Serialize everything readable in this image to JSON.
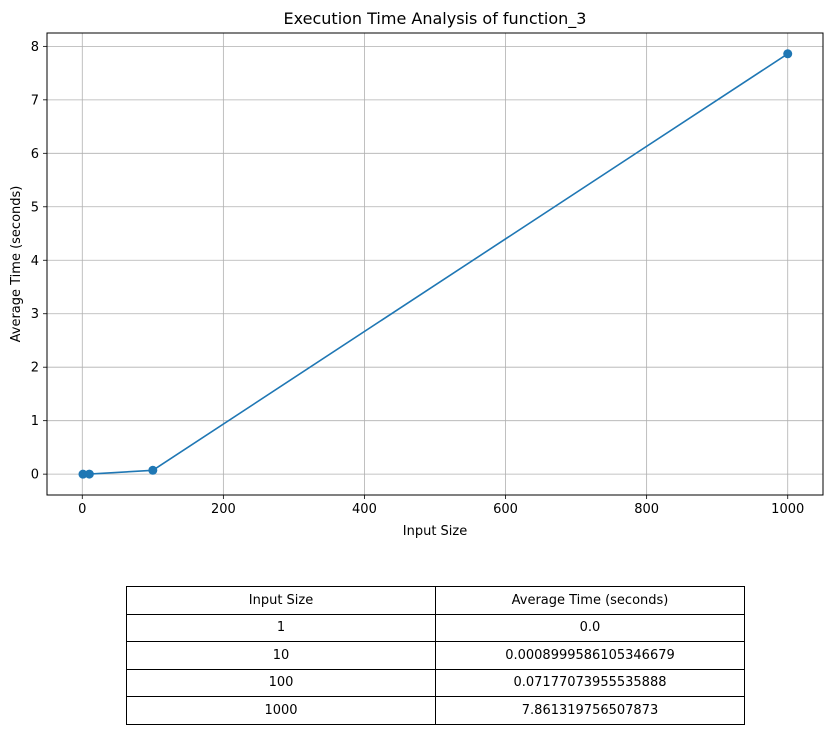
{
  "chart_data": {
    "type": "line",
    "title": "Execution Time Analysis of function_3",
    "xlabel": "Input Size",
    "ylabel": "Average Time (seconds)",
    "xlim": [
      -50,
      1050
    ],
    "ylim": [
      -0.39,
      8.25
    ],
    "xticks": [
      0,
      200,
      400,
      600,
      800,
      1000
    ],
    "yticks": [
      0,
      1,
      2,
      3,
      4,
      5,
      6,
      7,
      8
    ],
    "grid": true,
    "series": [
      {
        "x": [
          1,
          10,
          100,
          1000
        ],
        "y": [
          0.0,
          0.0008999586105346679,
          0.07177073955535888,
          7.861319756507873
        ],
        "color": "#1f77b4",
        "marker": "circle"
      }
    ]
  },
  "table": {
    "headers": [
      "Input Size",
      "Average Time (seconds)"
    ],
    "rows": [
      [
        "1",
        "0.0"
      ],
      [
        "10",
        "0.0008999586105346679"
      ],
      [
        "100",
        "0.07177073955535888"
      ],
      [
        "1000",
        "7.861319756507873"
      ]
    ]
  }
}
